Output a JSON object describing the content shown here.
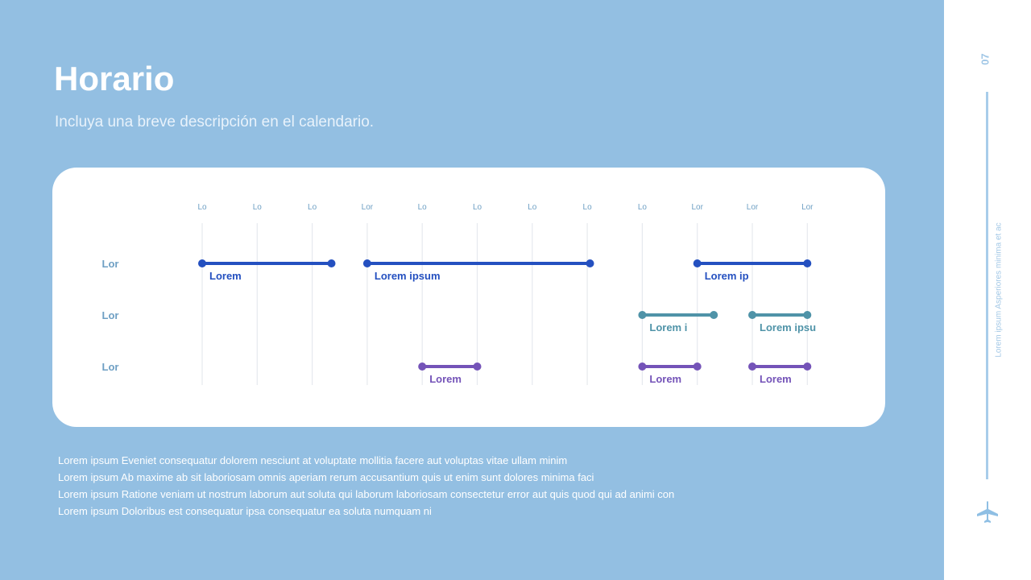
{
  "header": {
    "title": "Horario",
    "subtitle": "Incluya una breve descripción en el calendario."
  },
  "chart_data": {
    "type": "gantt",
    "columns": [
      "Lo",
      "Lo",
      "Lo",
      "Lor",
      "Lo",
      "Lo",
      "Lo",
      "Lo",
      "Lo",
      "Lor",
      "Lor",
      "Lor"
    ],
    "rows": [
      {
        "label": "Lor",
        "color": "#2450c0",
        "tasks": [
          {
            "start": 0,
            "end": 2.35,
            "label": "Lorem"
          },
          {
            "start": 3,
            "end": 7.05,
            "label": "Lorem ipsum"
          },
          {
            "start": 9,
            "end": 11,
            "label": "Lorem ip"
          }
        ]
      },
      {
        "label": "Lor",
        "color": "#4f93a8",
        "tasks": [
          {
            "start": 8,
            "end": 9.3,
            "label": "Lorem i"
          },
          {
            "start": 10,
            "end": 11,
            "label": "Lorem ipsu"
          }
        ]
      },
      {
        "label": "Lor",
        "color": "#7453b8",
        "tasks": [
          {
            "start": 4,
            "end": 5,
            "label": "Lorem"
          },
          {
            "start": 8,
            "end": 9,
            "label": "Lorem"
          },
          {
            "start": 10,
            "end": 11,
            "label": "Lorem"
          }
        ]
      }
    ],
    "grid": true
  },
  "notes": [
    "Lorem ipsum Eveniet consequatur dolorem nesciunt at voluptate mollitia facere aut voluptas vitae ullam minim",
    "Lorem ipsum Ab maxime ab sit laboriosam omnis aperiam rerum accusantium quis ut enim sunt dolores minima faci",
    "Lorem ipsum Ratione veniam ut nostrum laborum aut soluta qui laborum laboriosam consectetur error aut quis quod qui ad animi con",
    "Lorem ipsum Doloribus est consequatur ipsa consequatur ea soluta numquam ni"
  ],
  "sidebar": {
    "page_number": "07",
    "text": "Lorem ipsum Asperiores minima et ac",
    "icon": "airplane-icon"
  }
}
